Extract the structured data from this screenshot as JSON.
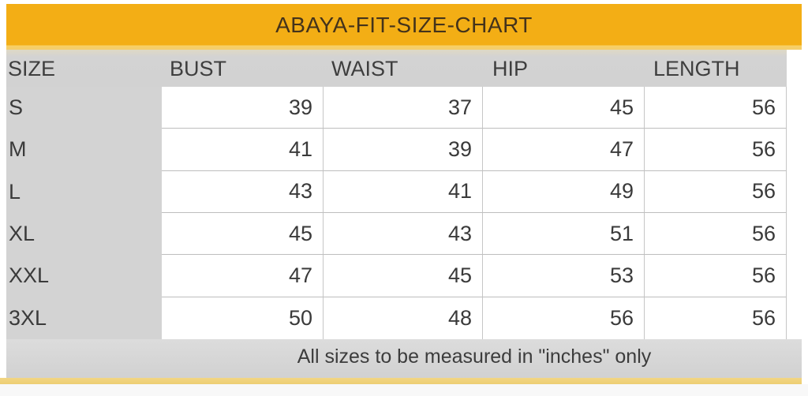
{
  "title": "ABAYA-FIT-SIZE-CHART",
  "columns": [
    "SIZE",
    "BUST",
    "WAIST",
    "HIP",
    "LENGTH"
  ],
  "rows": [
    {
      "size": "S",
      "bust": "39",
      "waist": "37",
      "hip": "45",
      "length": "56"
    },
    {
      "size": "M",
      "bust": "41",
      "waist": "39",
      "hip": "47",
      "length": "56"
    },
    {
      "size": "L",
      "bust": "43",
      "waist": "41",
      "hip": "49",
      "length": "56"
    },
    {
      "size": "XL",
      "bust": "45",
      "waist": "43",
      "hip": "51",
      "length": "56"
    },
    {
      "size": "XXL",
      "bust": "47",
      "waist": "45",
      "hip": "53",
      "length": "56"
    },
    {
      "size": "3XL",
      "bust": "50",
      "waist": "48",
      "hip": "56",
      "length": "56"
    }
  ],
  "footer_note": "All sizes to be measured in \"inches\" only",
  "colors": {
    "banner_yellow": "#F3AE15",
    "banner_bottom_edge": "#F3CD6C",
    "header_gray": "#D2D2D2",
    "row_label_gray": "#D3D3D3",
    "cell_border": "#C0C0C0",
    "body_text": "#3A3A3A",
    "title_text": "#44331B",
    "accent_strip_gold": "#EDCE72",
    "bottom_band": "#F8F8F8"
  },
  "chart_data": {
    "type": "table",
    "title": "ABAYA-FIT-SIZE-CHART",
    "columns": [
      "SIZE",
      "BUST",
      "WAIST",
      "HIP",
      "LENGTH"
    ],
    "rows": [
      [
        "S",
        39,
        37,
        45,
        56
      ],
      [
        "M",
        41,
        39,
        47,
        56
      ],
      [
        "L",
        43,
        41,
        49,
        56
      ],
      [
        "XL",
        45,
        43,
        51,
        56
      ],
      [
        "XXL",
        47,
        45,
        53,
        56
      ],
      [
        "3XL",
        50,
        48,
        56,
        56
      ]
    ],
    "units": "inches",
    "note": "All sizes to be measured in \"inches\" only"
  }
}
